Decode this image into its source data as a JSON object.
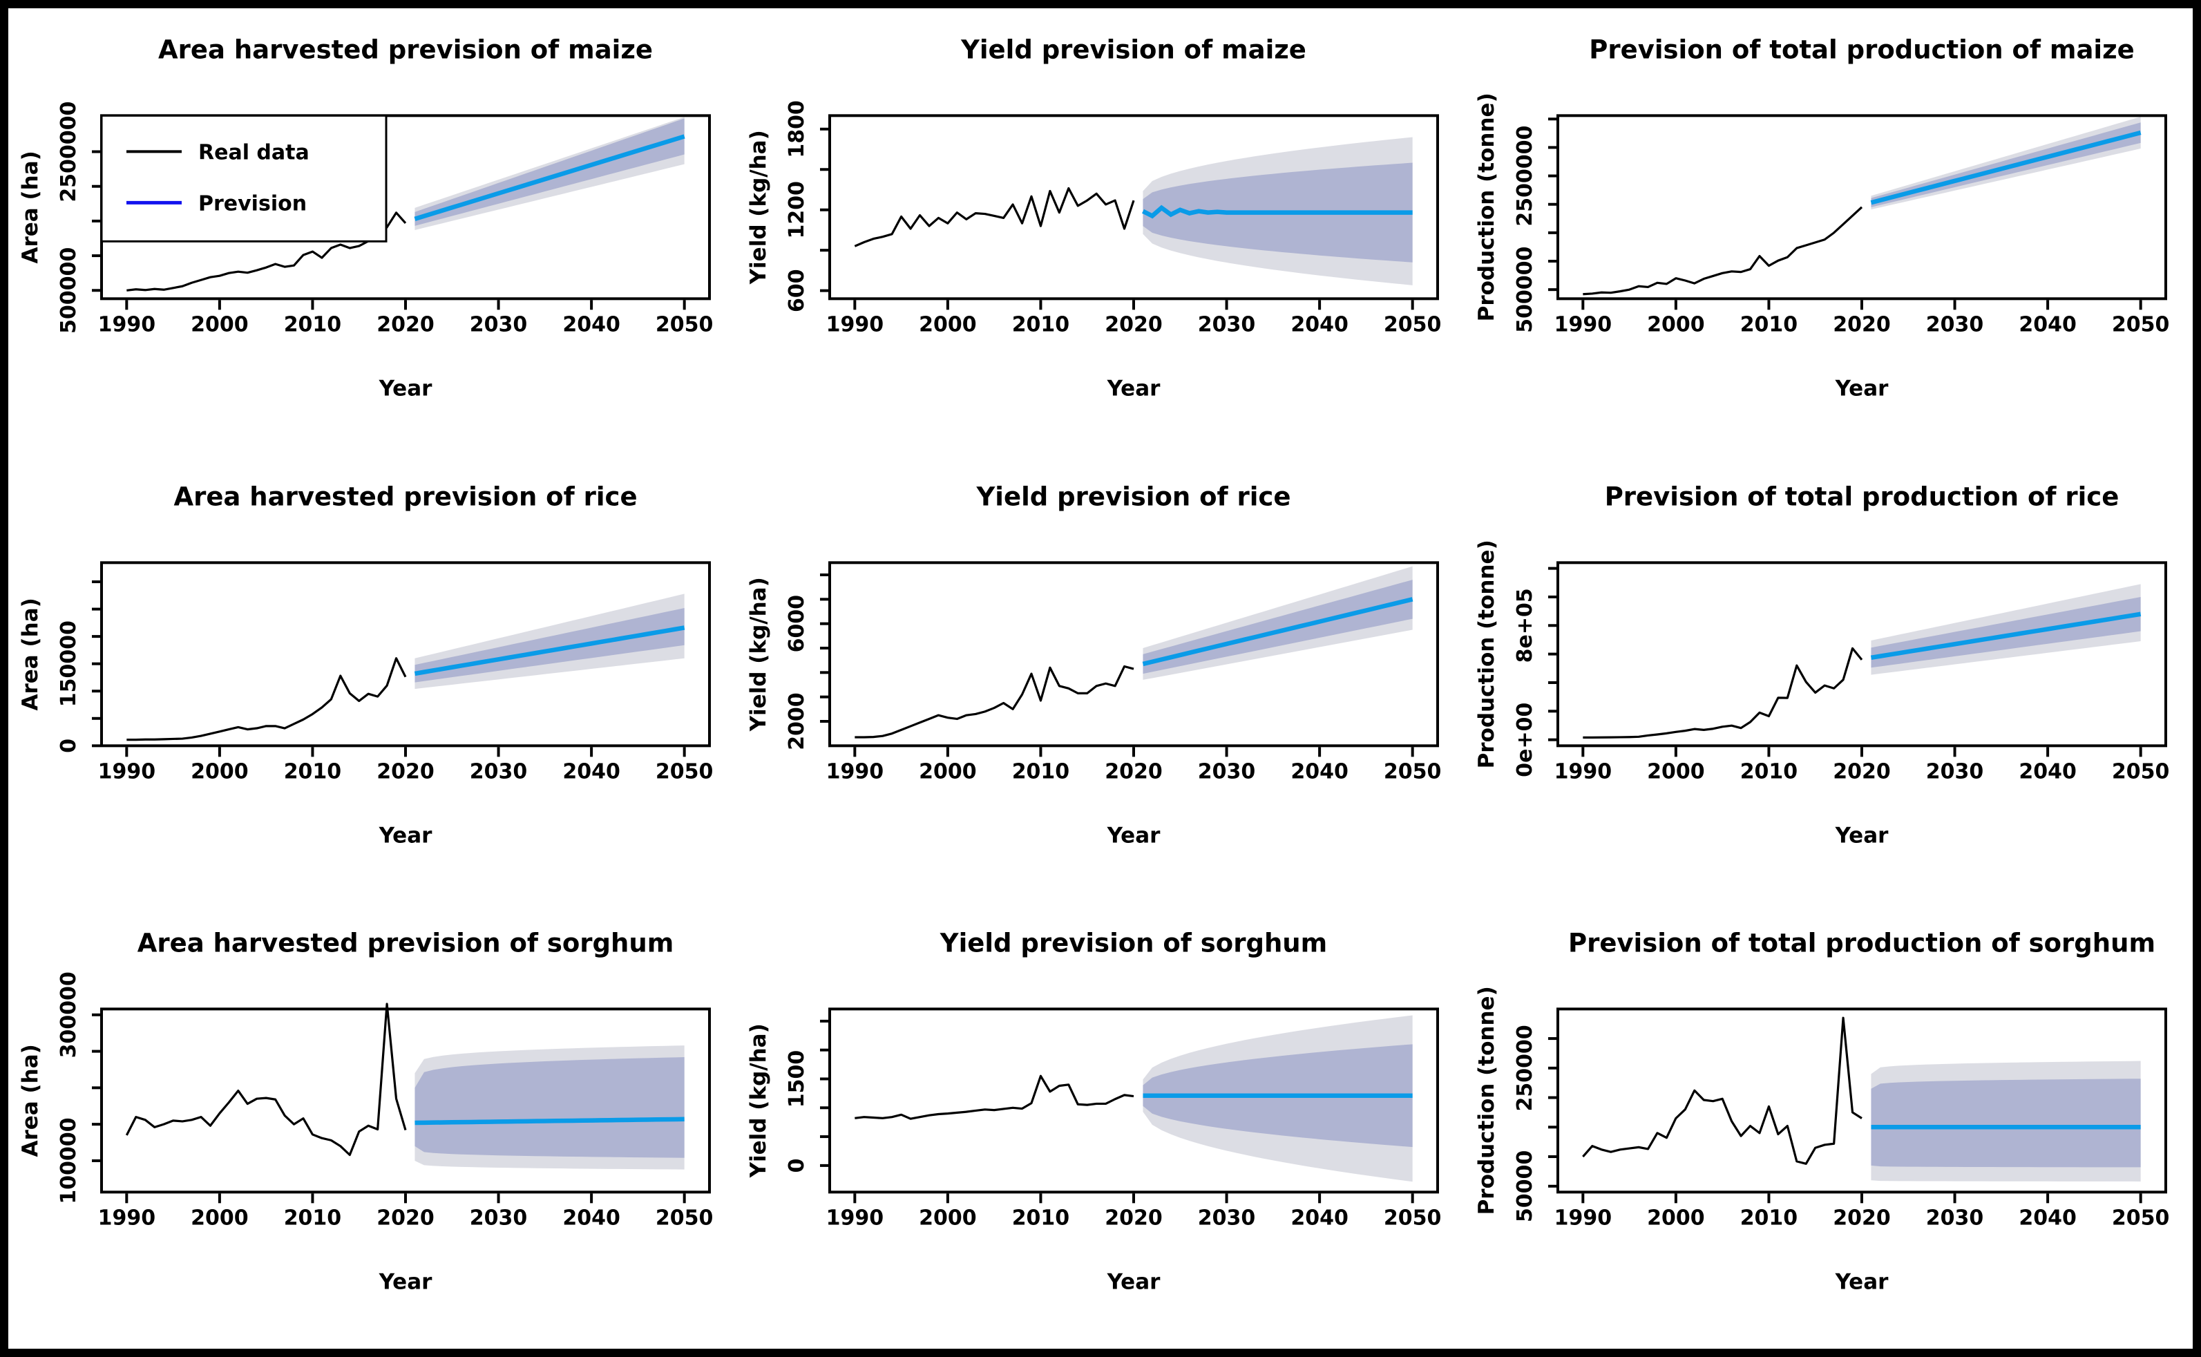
{
  "figure": {
    "background": "#ffffff",
    "frame_color": "#000000",
    "rows": 3,
    "cols": 3
  },
  "colors": {
    "real_line": "#000000",
    "prevision_line": "#0a9be8",
    "band_80": "#afb4d2",
    "band_95": "#dcdde4",
    "text": "#000000",
    "legend_prevision": "#1212ee"
  },
  "legend": {
    "items": [
      {
        "label": "Real data",
        "color": "#000000"
      },
      {
        "label": "Prevision",
        "color": "#1212ee"
      }
    ]
  },
  "chart_data": [
    {
      "type": "line",
      "title": "Area harvested prevision of maize",
      "xlabel": "Year",
      "ylabel": "Area (ha)",
      "show_legend": true,
      "x_real_start": 1990,
      "forecast_start": 2021,
      "forecast_end": 2050,
      "xlim": [
        1987.3,
        2052.7
      ],
      "ylim": [
        380000,
        3020000
      ],
      "xticks": [
        1990,
        2000,
        2010,
        2020,
        2030,
        2040,
        2050
      ],
      "yticks": [
        {
          "v": 500000,
          "label": "500000"
        },
        {
          "v": 1000000
        },
        {
          "v": 1500000
        },
        {
          "v": 2000000
        },
        {
          "v": 2500000,
          "label": "2500000"
        }
      ],
      "real": [
        500000,
        515000,
        505000,
        520000,
        510000,
        535000,
        560000,
        610000,
        650000,
        690000,
        710000,
        750000,
        770000,
        755000,
        790000,
        830000,
        880000,
        840000,
        860000,
        1010000,
        1060000,
        970000,
        1110000,
        1160000,
        1110000,
        1140000,
        1210000,
        1260000,
        1410000,
        1620000,
        1470000
      ],
      "mean": [
        1530000,
        2720000
      ],
      "bands": {
        "shape": "linear",
        "lo80": [
          1430000,
          2460000
        ],
        "hi80": [
          1630000,
          2980000
        ],
        "lo95": [
          1370000,
          2320000
        ],
        "hi95": [
          1690000,
          3000000
        ]
      }
    },
    {
      "type": "line",
      "title": "Yield prevision of maize",
      "xlabel": "Year",
      "ylabel": "Yield (kg/ha)",
      "show_legend": false,
      "x_real_start": 1990,
      "forecast_start": 2021,
      "forecast_end": 2050,
      "xlim": [
        1987.3,
        2052.7
      ],
      "ylim": [
        540,
        1900
      ],
      "xticks": [
        1990,
        2000,
        2010,
        2020,
        2030,
        2040,
        2050
      ],
      "yticks": [
        {
          "v": 600,
          "label": "600"
        },
        {
          "v": 900
        },
        {
          "v": 1200,
          "label": "1200"
        },
        {
          "v": 1500
        },
        {
          "v": 1800,
          "label": "1800"
        }
      ],
      "real": [
        930,
        960,
        985,
        1000,
        1020,
        1150,
        1060,
        1160,
        1080,
        1140,
        1100,
        1180,
        1130,
        1175,
        1170,
        1155,
        1140,
        1240,
        1100,
        1300,
        1080,
        1340,
        1180,
        1360,
        1230,
        1270,
        1320,
        1240,
        1270,
        1060,
        1270
      ],
      "mean": [
        1190,
        1155,
        1215,
        1165,
        1200,
        1175,
        1190,
        1180,
        1185,
        1180,
        1180,
        1180,
        1180,
        1180,
        1180,
        1180,
        1180,
        1180,
        1180,
        1180,
        1180,
        1180,
        1180,
        1180,
        1180,
        1180,
        1180,
        1180,
        1180,
        1180
      ],
      "bands": {
        "shape": "sqrt",
        "lo80": [
          1080,
          810
        ],
        "hi80": [
          1280,
          1550
        ],
        "lo95": [
          1020,
          640
        ],
        "hi95": [
          1340,
          1740
        ]
      }
    },
    {
      "type": "line",
      "title": "Prevision of total production of maize",
      "xlabel": "Year",
      "ylabel": "Production (tonne)",
      "show_legend": false,
      "x_real_start": 1990,
      "forecast_start": 2021,
      "forecast_end": 2050,
      "xlim": [
        1987.3,
        2052.7
      ],
      "ylim": [
        340000,
        3560000
      ],
      "xticks": [
        1990,
        2000,
        2010,
        2020,
        2030,
        2040,
        2050
      ],
      "yticks": [
        {
          "v": 500000,
          "label": "500000"
        },
        {
          "v": 1000000
        },
        {
          "v": 1500000
        },
        {
          "v": 2000000
        },
        {
          "v": 2500000,
          "label": "2500000"
        },
        {
          "v": 3000000
        },
        {
          "v": 3500000
        }
      ],
      "real": [
        420000,
        430000,
        450000,
        445000,
        470000,
        500000,
        560000,
        545000,
        620000,
        600000,
        700000,
        660000,
        610000,
        690000,
        740000,
        790000,
        820000,
        810000,
        860000,
        1090000,
        920000,
        1010000,
        1070000,
        1230000,
        1280000,
        1330000,
        1380000,
        1500000,
        1650000,
        1800000,
        1950000
      ],
      "mean": [
        2030000,
        3260000
      ],
      "bands": {
        "shape": "linear",
        "lo80": [
          1950000,
          3080000
        ],
        "hi80": [
          2110000,
          3440000
        ],
        "lo95": [
          1910000,
          2980000
        ],
        "hi95": [
          2150000,
          3540000
        ]
      }
    },
    {
      "type": "line",
      "title": "Area harvested prevision of rice",
      "xlabel": "Year",
      "ylabel": "Area (ha)",
      "show_legend": false,
      "x_real_start": 1990,
      "forecast_start": 2021,
      "forecast_end": 2050,
      "xlim": [
        1987.3,
        2052.7
      ],
      "ylim": [
        0,
        335000
      ],
      "xticks": [
        1990,
        2000,
        2010,
        2020,
        2030,
        2040,
        2050
      ],
      "yticks": [
        {
          "v": 0,
          "label": "0"
        },
        {
          "v": 50000
        },
        {
          "v": 100000
        },
        {
          "v": 150000,
          "label": "150000"
        },
        {
          "v": 200000
        },
        {
          "v": 250000
        },
        {
          "v": 300000
        }
      ],
      "real": [
        11000,
        11000,
        11500,
        11500,
        12000,
        12500,
        13000,
        15000,
        18000,
        22000,
        26000,
        30000,
        34000,
        30000,
        32000,
        36000,
        36000,
        32000,
        40000,
        48000,
        58000,
        70000,
        85000,
        128000,
        96000,
        82000,
        95000,
        90000,
        110000,
        160000,
        126000
      ],
      "mean": [
        132000,
        216000
      ],
      "bands": {
        "shape": "linear",
        "lo80": [
          116000,
          184000
        ],
        "hi80": [
          148000,
          252000
        ],
        "lo95": [
          104000,
          160000
        ],
        "hi95": [
          160000,
          278000
        ]
      }
    },
    {
      "type": "line",
      "title": "Yield prevision of rice",
      "xlabel": "Year",
      "ylabel": "Yield (kg/ha)",
      "show_legend": false,
      "x_real_start": 1990,
      "forecast_start": 2021,
      "forecast_end": 2050,
      "xlim": [
        1987.3,
        2052.7
      ],
      "ylim": [
        1000,
        8500
      ],
      "xticks": [
        1990,
        2000,
        2010,
        2020,
        2030,
        2040,
        2050
      ],
      "yticks": [
        {
          "v": 2000,
          "label": "2000"
        },
        {
          "v": 3000
        },
        {
          "v": 4000
        },
        {
          "v": 5000
        },
        {
          "v": 6000,
          "label": "6000"
        },
        {
          "v": 7000
        },
        {
          "v": 8000
        }
      ],
      "real": [
        1350,
        1350,
        1360,
        1400,
        1500,
        1650,
        1800,
        1950,
        2100,
        2250,
        2150,
        2100,
        2250,
        2300,
        2400,
        2550,
        2750,
        2500,
        3100,
        3950,
        2850,
        4200,
        3450,
        3350,
        3150,
        3150,
        3450,
        3550,
        3450,
        4250,
        4150
      ],
      "mean": [
        4350,
        7000
      ],
      "bands": {
        "shape": "linear",
        "lo80": [
          3950,
          6200
        ],
        "hi80": [
          4750,
          7800
        ],
        "lo95": [
          3700,
          5750
        ],
        "hi95": [
          5000,
          8350
        ]
      }
    },
    {
      "type": "line",
      "title": "Prevision of total production of rice",
      "xlabel": "Year",
      "ylabel": "Production (tonne)",
      "show_legend": false,
      "x_real_start": 1990,
      "forecast_start": 2021,
      "forecast_end": 2050,
      "xlim": [
        1987.3,
        2052.7
      ],
      "ylim": [
        -42000,
        1240000
      ],
      "xticks": [
        1990,
        2000,
        2010,
        2020,
        2030,
        2040,
        2050
      ],
      "yticks": [
        {
          "v": 0,
          "label": "0e+00"
        },
        {
          "v": 200000
        },
        {
          "v": 400000
        },
        {
          "v": 600000
        },
        {
          "v": 800000,
          "label": "8e+05"
        },
        {
          "v": 1000000
        },
        {
          "v": 1200000
        }
      ],
      "real": [
        16000,
        16000,
        16500,
        17000,
        18000,
        19000,
        21000,
        30000,
        37000,
        45000,
        55000,
        63000,
        75000,
        69000,
        77000,
        91000,
        99000,
        82000,
        124000,
        190000,
        165000,
        294000,
        293000,
        520000,
        405000,
        330000,
        380000,
        360000,
        420000,
        640000,
        560000
      ],
      "mean": [
        575000,
        880000
      ],
      "bands": {
        "shape": "linear",
        "lo80": [
          505000,
          760000
        ],
        "hi80": [
          645000,
          1000000
        ],
        "lo95": [
          455000,
          690000
        ],
        "hi95": [
          695000,
          1090000
        ]
      }
    },
    {
      "type": "line",
      "title": "Area harvested prevision of sorghum",
      "xlabel": "Year",
      "ylabel": "Area (ha)",
      "show_legend": false,
      "x_real_start": 1990,
      "forecast_start": 2021,
      "forecast_end": 2050,
      "xlim": [
        1987.3,
        2052.7
      ],
      "ylim": [
        57000,
        308000
      ],
      "xticks": [
        1990,
        2000,
        2010,
        2020,
        2030,
        2040,
        2050
      ],
      "yticks": [
        {
          "v": 100000,
          "label": "100000"
        },
        {
          "v": 150000
        },
        {
          "v": 200000
        },
        {
          "v": 250000
        },
        {
          "v": 300000,
          "label": "300000"
        }
      ],
      "real": [
        135000,
        160000,
        156000,
        146000,
        150000,
        155000,
        154000,
        156000,
        160000,
        148000,
        165000,
        180000,
        196000,
        178000,
        185000,
        186000,
        184000,
        162000,
        150000,
        158000,
        136000,
        131000,
        128000,
        120000,
        108000,
        140000,
        148000,
        143000,
        315000,
        185000,
        142000
      ],
      "mean": [
        152000,
        157000
      ],
      "bands": {
        "shape": "fast",
        "lo80": [
          120000,
          104000
        ],
        "hi80": [
          200000,
          242000
        ],
        "lo95": [
          100000,
          88000
        ],
        "hi95": [
          220000,
          258000
        ]
      }
    },
    {
      "type": "line",
      "title": "Yield prevision of sorghum",
      "xlabel": "Year",
      "ylabel": "Yield (kg/ha)",
      "show_legend": false,
      "x_real_start": 1990,
      "forecast_start": 2021,
      "forecast_end": 2050,
      "xlim": [
        1987.3,
        2052.7
      ],
      "ylim": [
        -460,
        2710
      ],
      "xticks": [
        1990,
        2000,
        2010,
        2020,
        2030,
        2040,
        2050
      ],
      "yticks": [
        {
          "v": 0,
          "label": "0"
        },
        {
          "v": 500
        },
        {
          "v": 1000
        },
        {
          "v": 1500,
          "label": "1500"
        },
        {
          "v": 2000
        },
        {
          "v": 2500
        }
      ],
      "real": [
        820,
        840,
        830,
        820,
        840,
        880,
        810,
        840,
        870,
        890,
        900,
        915,
        930,
        950,
        970,
        960,
        980,
        1000,
        985,
        1080,
        1550,
        1280,
        1380,
        1400,
        1060,
        1050,
        1070,
        1070,
        1150,
        1220,
        1200
      ],
      "mean": [
        1210,
        1210
      ],
      "bands": {
        "shape": "sqrt",
        "lo80": [
          1030,
          320
        ],
        "hi80": [
          1390,
          2100
        ],
        "lo95": [
          930,
          -280
        ],
        "hi95": [
          1490,
          2600
        ]
      }
    },
    {
      "type": "line",
      "title": "Prevision of total production of sorghum",
      "xlabel": "Year",
      "ylabel": "Production (tonne)",
      "show_legend": false,
      "x_real_start": 1990,
      "forecast_start": 2021,
      "forecast_end": 2050,
      "xlim": [
        1987.3,
        2052.7
      ],
      "ylim": [
        40000,
        350000
      ],
      "xticks": [
        1990,
        2000,
        2010,
        2020,
        2030,
        2040,
        2050
      ],
      "yticks": [
        {
          "v": 50000,
          "label": "50000"
        },
        {
          "v": 100000
        },
        {
          "v": 150000
        },
        {
          "v": 200000
        },
        {
          "v": 250000,
          "label": "250000"
        },
        {
          "v": 300000
        }
      ],
      "real": [
        100000,
        118000,
        112000,
        108000,
        112000,
        114000,
        116000,
        113000,
        140000,
        132000,
        165000,
        180000,
        212000,
        196000,
        194000,
        198000,
        160000,
        135000,
        152000,
        140000,
        185000,
        138000,
        152000,
        92000,
        88000,
        115000,
        120000,
        122000,
        335000,
        175000,
        165000
      ],
      "mean": [
        150000,
        150000
      ],
      "bands": {
        "shape": "fast",
        "lo80": [
          85000,
          82000
        ],
        "hi80": [
          215000,
          232000
        ],
        "lo95": [
          60000,
          58000
        ],
        "hi95": [
          240000,
          262000
        ]
      }
    }
  ]
}
